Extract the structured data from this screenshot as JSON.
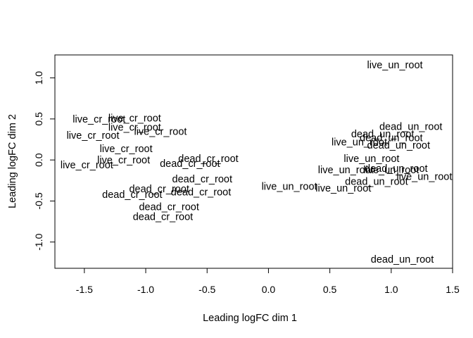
{
  "chart_data": {
    "type": "scatter",
    "title": "",
    "xlabel": "Leading logFC dim 1",
    "ylabel": "Leading logFC dim 2",
    "xlim": [
      -1.74,
      1.5
    ],
    "ylim": [
      -1.32,
      1.28
    ],
    "x_ticks": [
      -1.5,
      -1.0,
      -0.5,
      0.0,
      0.5,
      1.0,
      1.5
    ],
    "x_tick_labels": [
      "-1.5",
      "-1.0",
      "-0.5",
      "0.0",
      "0.5",
      "1.0",
      "1.5"
    ],
    "y_ticks": [
      -1.0,
      -0.5,
      0.0,
      0.5,
      1.0
    ],
    "y_tick_labels": [
      "-1.0",
      "-0.5",
      "0.0",
      "0.5",
      "1.0"
    ],
    "grid": false,
    "points": [
      {
        "label": "live_un_root",
        "x": 1.03,
        "y": 1.16
      },
      {
        "label": "live_cr_root",
        "x": -1.38,
        "y": 0.5
      },
      {
        "label": "live_cr_root",
        "x": -1.09,
        "y": 0.51
      },
      {
        "label": "live_cr_root",
        "x": -1.09,
        "y": 0.4
      },
      {
        "label": "live_cr_root",
        "x": -0.88,
        "y": 0.35
      },
      {
        "label": "live_cr_root",
        "x": -1.43,
        "y": 0.3
      },
      {
        "label": "live_cr_root",
        "x": -1.16,
        "y": 0.14
      },
      {
        "label": "live_cr_root",
        "x": -1.18,
        "y": 0.0
      },
      {
        "label": "live_cr_root",
        "x": -1.48,
        "y": -0.06
      },
      {
        "label": "dead_un_root",
        "x": 1.16,
        "y": 0.41
      },
      {
        "label": "dead_un_root",
        "x": 0.93,
        "y": 0.32
      },
      {
        "label": "dead_un_root",
        "x": 1.0,
        "y": 0.27
      },
      {
        "label": "live_un_root",
        "x": 0.74,
        "y": 0.22
      },
      {
        "label": "dead_un_root",
        "x": 1.06,
        "y": 0.18
      },
      {
        "label": "live_un_root",
        "x": 0.84,
        "y": 0.02
      },
      {
        "label": "live_un_root",
        "x": 0.63,
        "y": -0.12
      },
      {
        "label": "dead_un_root",
        "x": 1.04,
        "y": -0.1
      },
      {
        "label": "live_un_root",
        "x": 1.0,
        "y": -0.12
      },
      {
        "label": "live_un_root",
        "x": 1.27,
        "y": -0.2
      },
      {
        "label": "dead_un_root",
        "x": 0.88,
        "y": -0.26
      },
      {
        "label": "live_un_root",
        "x": 0.61,
        "y": -0.34
      },
      {
        "label": "live_un_root",
        "x": 0.17,
        "y": -0.32
      },
      {
        "label": "dead_cr_root",
        "x": -0.49,
        "y": 0.02
      },
      {
        "label": "dead_cr_root",
        "x": -0.64,
        "y": -0.04
      },
      {
        "label": "dead_cr_root",
        "x": -0.54,
        "y": -0.23
      },
      {
        "label": "dead_cr_root",
        "x": -0.89,
        "y": -0.35
      },
      {
        "label": "dead_cr_root",
        "x": -0.55,
        "y": -0.39
      },
      {
        "label": "dead_cr_root",
        "x": -1.11,
        "y": -0.42
      },
      {
        "label": "dead_cr_root",
        "x": -0.81,
        "y": -0.57
      },
      {
        "label": "dead_cr_root",
        "x": -0.86,
        "y": -0.69
      },
      {
        "label": "dead_un_root",
        "x": 1.09,
        "y": -1.21
      }
    ]
  }
}
